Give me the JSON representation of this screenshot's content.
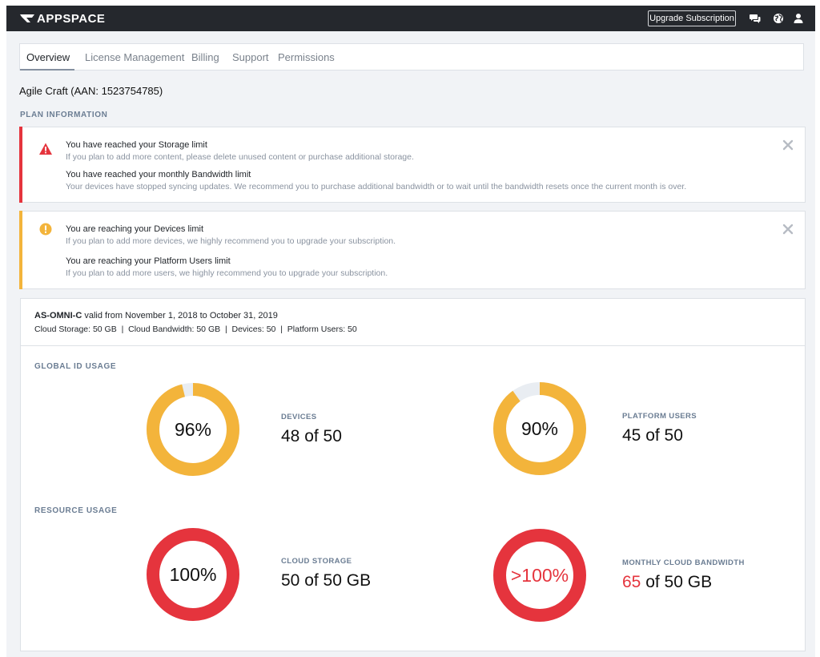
{
  "brand": {
    "name": "APPSPACE"
  },
  "header": {
    "upgrade_label": "Upgrade Subscription",
    "icons": [
      "chat-icon",
      "globe-icon",
      "user-icon"
    ]
  },
  "tabs": [
    {
      "label": "Overview",
      "active": true
    },
    {
      "label": "License Management",
      "active": false
    },
    {
      "label": "Billing",
      "active": false
    },
    {
      "label": "Support",
      "active": false
    },
    {
      "label": "Permissions",
      "active": false
    }
  ],
  "account_title": "Agile Craft (AAN: 1523754785)",
  "plan_info_label": "PLAN INFORMATION",
  "alerts": [
    {
      "level": "error",
      "color": "#e5343d",
      "icon": "warning-triangle-icon",
      "messages": [
        {
          "title": "You have reached your Storage limit",
          "body": "If you plan to add more content, please delete unused content or purchase additional storage."
        },
        {
          "title": "You have reached your monthly Bandwidth limit",
          "body": "Your devices have stopped syncing updates. We recommend you to purchase additional bandwidth or to wait until the bandwidth resets once the current month is over."
        }
      ]
    },
    {
      "level": "warning",
      "color": "#f3b43b",
      "icon": "exclamation-circle-icon",
      "messages": [
        {
          "title": "You are reaching your Devices limit",
          "body": "If you plan to add more devices, we highly recommend you to upgrade your subscription."
        },
        {
          "title": "You are reaching your Platform Users limit",
          "body": "If you plan to add more users, we highly recommend you to upgrade your subscription."
        }
      ]
    }
  ],
  "plan": {
    "code": "AS-OMNI-C",
    "validity": " valid from November 1, 2018 to October 31, 2019",
    "limits": "Cloud Storage: 50 GB  |  Cloud Bandwidth: 50 GB  |  Devices: 50  |  Platform Users: 50"
  },
  "global_usage_label": "GLOBAL ID USAGE",
  "resource_usage_label": "RESOURCE USAGE",
  "stats": [
    {
      "key": "devices",
      "label": "DEVICES",
      "percent_text": "96%",
      "fill": 0.96,
      "color": "#f3b43b",
      "value_used": "48",
      "value_rest": " of 50",
      "used_red": false
    },
    {
      "key": "platform_users",
      "label": "PLATFORM USERS",
      "percent_text": "90%",
      "fill": 0.9,
      "color": "#f3b43b",
      "value_used": "45",
      "value_rest": " of 50",
      "used_red": false
    },
    {
      "key": "cloud_storage",
      "label": "CLOUD STORAGE",
      "percent_text": "100%",
      "fill": 1.0,
      "color": "#e5343d",
      "value_used": "50",
      "value_rest": " of 50 GB",
      "used_red": false
    },
    {
      "key": "monthly_bandwidth",
      "label": "MONTHLY CLOUD BANDWIDTH",
      "percent_text": ">100%",
      "fill": 1.0,
      "color": "#e5343d",
      "value_used": "65",
      "value_rest": " of 50 GB",
      "used_red": true
    }
  ],
  "colors": {
    "track": "#e9edf2",
    "topbar": "#25282d"
  }
}
